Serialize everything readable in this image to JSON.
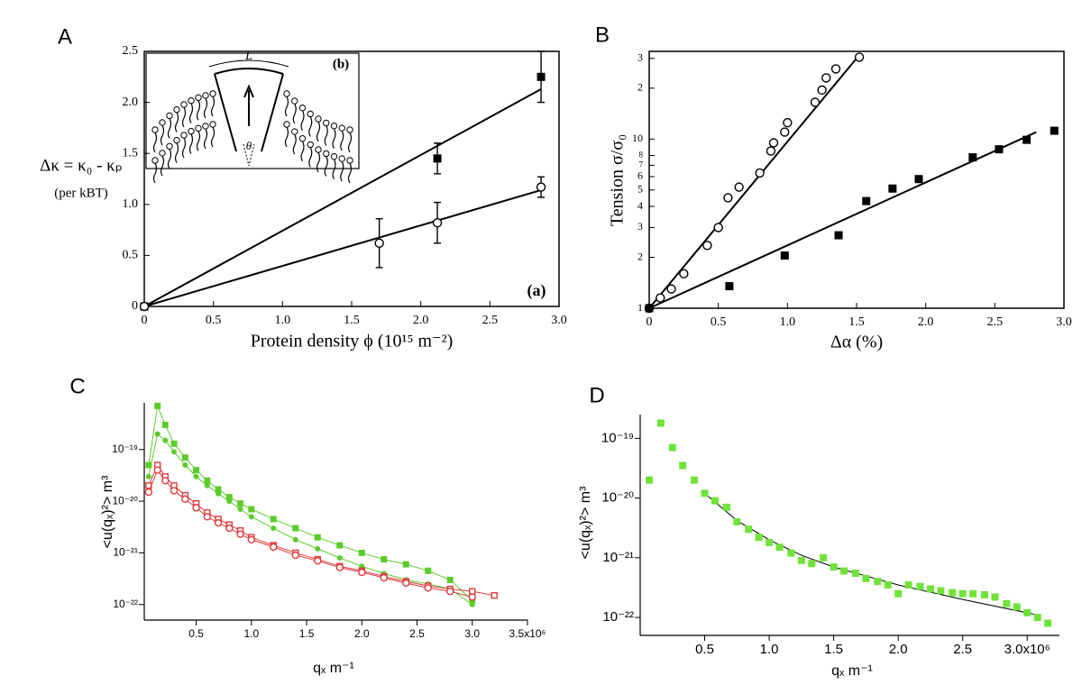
{
  "chart_data": [
    {
      "type": "scatter",
      "label": "A",
      "xlabel": "Protein density ϕ  (10¹⁵ m⁻²)",
      "ylabel": [
        "Δκ = κ₀ - κₚ",
        "(per kBT)"
      ],
      "annotation": "(a)",
      "inset": {
        "label": "(b)",
        "length": "L",
        "angle": "θ"
      },
      "xlim": [
        0,
        3
      ],
      "xticks": [
        0,
        0.5,
        {
          "value": 1,
          "label": "1.0"
        },
        1.5,
        {
          "value": 2,
          "label": "2.0"
        },
        2.5,
        {
          "value": 3,
          "label": "3.0"
        }
      ],
      "ylim": [
        0,
        2.5
      ],
      "yticks": [
        0,
        0.5,
        {
          "value": 1,
          "label": "1.0"
        },
        1.5,
        {
          "value": 2,
          "label": "2.0"
        },
        2.5
      ],
      "series": [
        {
          "marker": "square",
          "filled": true,
          "color": "#000000",
          "x": [
            0,
            2.12,
            2.87
          ],
          "values": [
            0,
            1.45,
            2.25
          ],
          "errors": [
            null,
            0.15,
            0.25
          ]
        },
        {
          "marker": "circle",
          "filled": false,
          "color": "#000000",
          "x": [
            0,
            1.7,
            2.12,
            2.87
          ],
          "values": [
            0,
            0.62,
            0.82,
            1.17
          ],
          "errors": [
            null,
            0.24,
            0.2,
            0.1
          ]
        }
      ],
      "fits": [
        {
          "x": [
            0,
            2.87
          ],
          "y": [
            0,
            2.13
          ]
        },
        {
          "x": [
            0,
            2.87
          ],
          "y": [
            0,
            1.14
          ]
        }
      ]
    },
    {
      "type": "scatter",
      "label": "B",
      "log_y": true,
      "xlabel": "Δα (%)",
      "ylabel": "Tension σ/σ₀",
      "xlim": [
        0,
        3
      ],
      "xticks": [
        0,
        0.5,
        {
          "value": 1,
          "label": "1.0"
        },
        1.5,
        {
          "value": 2,
          "label": "2.0"
        },
        2.5,
        {
          "value": 3,
          "label": "3.0"
        }
      ],
      "ylim": [
        1,
        33
      ],
      "yticks": [
        1,
        2,
        3,
        4,
        5,
        6,
        7,
        8,
        10,
        {
          "value": 20,
          "label": "2"
        },
        {
          "value": 30,
          "label": "3"
        }
      ],
      "series": [
        {
          "marker": "circle",
          "filled": false,
          "color": "#000000",
          "x": [
            0,
            0.08,
            0.16,
            0.25,
            0.42,
            0.5,
            0.57,
            0.65,
            0.8,
            0.88,
            0.9,
            0.98,
            1.0,
            1.2,
            1.25,
            1.28,
            1.35,
            1.52
          ],
          "values": [
            1,
            1.15,
            1.3,
            1.6,
            2.35,
            3.0,
            4.5,
            5.2,
            6.3,
            8.5,
            9.5,
            11,
            12.5,
            16.5,
            19.5,
            23,
            26,
            30.5
          ]
        },
        {
          "marker": "square",
          "filled": true,
          "color": "#000000",
          "x": [
            0,
            0.58,
            0.98,
            1.37,
            1.57,
            1.76,
            1.95,
            2.34,
            2.53,
            2.73,
            2.93
          ],
          "values": [
            1,
            1.35,
            2.05,
            2.7,
            4.3,
            5.1,
            5.8,
            7.8,
            8.7,
            9.9,
            11.2
          ]
        }
      ],
      "fits": [
        {
          "x": [
            0,
            1.5
          ],
          "y": [
            1,
            30
          ]
        },
        {
          "x": [
            0,
            2.8
          ],
          "y": [
            1,
            11
          ]
        }
      ]
    },
    {
      "type": "line",
      "label": "C",
      "log_y": true,
      "xlabel": "qₓ   m⁻¹",
      "ylabel": "<u(qₓ)²>  m³",
      "xlim": [
        0.03,
        3.5
      ],
      "xticks": [
        0.5,
        {
          "value": 1,
          "label": "1.0"
        },
        1.5,
        {
          "value": 2,
          "label": "2.0"
        },
        2.5,
        {
          "value": 3,
          "label": "3.0"
        },
        {
          "value": 3.5,
          "label": "3.5x10⁶"
        }
      ],
      "ylim": [
        5e-23,
        8e-19
      ],
      "yticks": [
        {
          "value": 1e-22,
          "label": "10⁻²²"
        },
        {
          "value": 1e-21,
          "label": "10⁻²¹"
        },
        {
          "value": 1e-20,
          "label": "10⁻²⁰"
        },
        {
          "value": 1e-19,
          "label": "10⁻¹⁹"
        }
      ],
      "x": [
        0.07,
        0.15,
        0.22,
        0.3,
        0.4,
        0.5,
        0.6,
        0.7,
        0.8,
        0.9,
        1.0,
        1.2,
        1.4,
        1.6,
        1.8,
        2.0,
        2.2,
        2.4,
        2.6,
        2.8,
        3.0,
        3.2
      ],
      "series": [
        {
          "marker": "square",
          "filled": true,
          "color": "#5ccc2c",
          "values": [
            5e-20,
            7e-19,
            3e-19,
            1.3e-19,
            7e-20,
            4e-20,
            2.5e-20,
            1.7e-20,
            1.2e-20,
            9e-21,
            7e-21,
            4.5e-21,
            3e-21,
            2e-21,
            1.4e-21,
            1e-21,
            7.5e-22,
            6e-22,
            4.5e-22,
            3e-22,
            1.2e-22,
            null
          ]
        },
        {
          "marker": "circle",
          "filled": true,
          "color": "#5ccc2c",
          "values": [
            3e-20,
            2e-19,
            1.5e-19,
            9e-20,
            5e-20,
            3e-20,
            2e-20,
            1.4e-20,
            1e-20,
            7e-21,
            5e-21,
            3e-21,
            1.8e-21,
            1.2e-21,
            8e-22,
            5.5e-22,
            4e-22,
            3e-22,
            2.5e-22,
            2e-22,
            1e-22,
            null
          ]
        },
        {
          "marker": "square",
          "filled": false,
          "color": "#e0383a",
          "values": [
            2e-20,
            5e-20,
            3e-20,
            2e-20,
            1.3e-20,
            9e-21,
            6e-21,
            4.5e-21,
            3.5e-21,
            2.7e-21,
            2e-21,
            1.4e-21,
            1e-21,
            7.5e-22,
            5.5e-22,
            4.5e-22,
            3.5e-22,
            2.8e-22,
            2.3e-22,
            2e-22,
            1.8e-22,
            1.5e-22
          ]
        },
        {
          "marker": "circle",
          "filled": false,
          "color": "#e0383a",
          "values": [
            1.5e-20,
            4e-20,
            2.5e-20,
            1.6e-20,
            1.1e-20,
            7.5e-21,
            5e-21,
            3.8e-21,
            3e-21,
            2.3e-21,
            1.8e-21,
            1.3e-21,
            9e-22,
            7e-22,
            5.2e-22,
            4.2e-22,
            3.3e-22,
            2.6e-22,
            2.1e-22,
            1.8e-22,
            1.4e-22,
            null
          ]
        }
      ]
    },
    {
      "type": "scatter",
      "label": "D",
      "log_y": true,
      "xlabel": "qₓ  m⁻¹",
      "ylabel": "<u(qₓ)²>  m³",
      "xlim": [
        0,
        3.25
      ],
      "xticks": [
        0.5,
        {
          "value": 1,
          "label": "1.0"
        },
        1.5,
        {
          "value": 2,
          "label": "2.0"
        },
        2.5,
        {
          "value": 3,
          "label": "3.0x10⁶"
        }
      ],
      "ylim": [
        5e-23,
        2.5e-19
      ],
      "yticks": [
        {
          "value": 1e-22,
          "label": "10⁻²²"
        },
        {
          "value": 1e-21,
          "label": "10⁻²¹"
        },
        {
          "value": 1e-20,
          "label": "10⁻²⁰"
        },
        {
          "value": 1e-19,
          "label": "10⁻¹⁹"
        }
      ],
      "series": [
        {
          "marker": "square",
          "filled": true,
          "color": "#6fe33a",
          "x": [
            0.07,
            0.16,
            0.25,
            0.33,
            0.42,
            0.5,
            0.58,
            0.67,
            0.75,
            0.84,
            0.92,
            1.0,
            1.08,
            1.17,
            1.25,
            1.33,
            1.42,
            1.5,
            1.58,
            1.67,
            1.75,
            1.84,
            1.92,
            2.0,
            2.08,
            2.17,
            2.25,
            2.33,
            2.42,
            2.5,
            2.58,
            2.67,
            2.75,
            2.84,
            2.92,
            3.0,
            3.08,
            3.16
          ],
          "values": [
            2e-20,
            1.8e-19,
            7e-20,
            3.5e-20,
            2e-20,
            1.2e-20,
            9e-21,
            7e-21,
            4e-21,
            3e-21,
            2.2e-21,
            1.8e-21,
            1.5e-21,
            1.2e-21,
            9e-22,
            8e-22,
            1e-21,
            7e-22,
            6e-22,
            5.5e-22,
            4.5e-22,
            4e-22,
            3.5e-22,
            2.5e-22,
            3.5e-22,
            3.3e-22,
            3e-22,
            2.8e-22,
            2.6e-22,
            2.5e-22,
            2.5e-22,
            2.4e-22,
            2.2e-22,
            1.7e-22,
            1.5e-22,
            1.2e-22,
            1e-22,
            8e-23
          ]
        }
      ],
      "fits": [
        {
          "x": [
            0.5,
            0.75,
            1,
            1.25,
            1.5,
            2,
            2.5,
            3.08
          ],
          "y": [
            1.2e-20,
            4.2e-21,
            2e-21,
            1.1e-21,
            7e-22,
            3.5e-22,
            2e-22,
            1.1e-22
          ]
        }
      ]
    }
  ]
}
